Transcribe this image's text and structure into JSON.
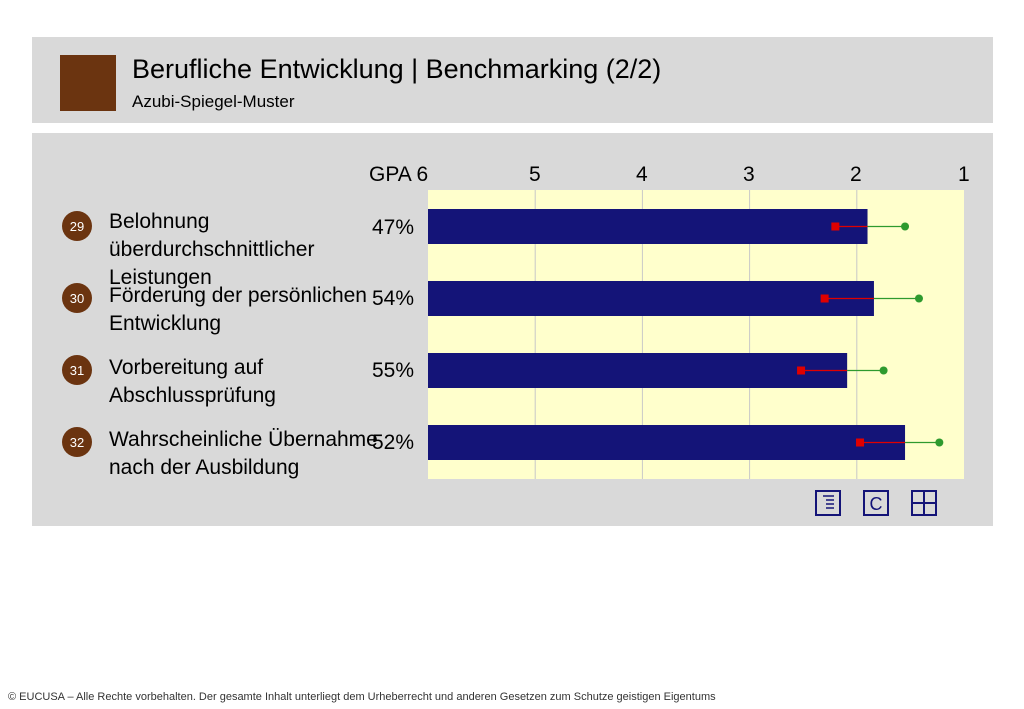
{
  "header": {
    "title": "Berufliche Entwicklung  | Benchmarking (2/2)",
    "subtitle": "Azubi-Spiegel-Muster"
  },
  "chart_data": {
    "type": "bar",
    "axis": {
      "x_tick_labels": [
        "GPA 6",
        "5",
        "4",
        "3",
        "2",
        "1"
      ],
      "xlim": [
        6,
        1
      ],
      "reversed": true
    },
    "categories": [
      {
        "number": "29",
        "label": "Belohnung überdurchschnittlicher Leistungen",
        "percent": "47%"
      },
      {
        "number": "30",
        "label": "Förderung der persönlichen Entwicklung",
        "percent": "54%"
      },
      {
        "number": "31",
        "label": "Vorbereitung auf Abschlussprüfung",
        "percent": "55%"
      },
      {
        "number": "32",
        "label": "Wahrscheinliche Übernahme nach der Ausbildung",
        "percent": "52%"
      }
    ],
    "series": [
      {
        "values": [
          1.9,
          1.84,
          2.09,
          1.55
        ],
        "color": "#141478",
        "kind": "bar"
      },
      {
        "values": [
          2.2,
          2.3,
          2.52,
          1.97
        ],
        "color": "#e00000",
        "kind": "marker-square"
      },
      {
        "values": [
          1.55,
          1.42,
          1.75,
          1.23
        ],
        "color": "#2e9a2e",
        "kind": "marker-circle"
      }
    ],
    "plot_background": "#ffffcc",
    "grid": true
  },
  "footer": {
    "copyright": "© EUCUSA – Alle Rechte vorbehalten. Der gesamte Inhalt unterliegt dem Urheberrecht und anderen Gesetzen zum Schutze geistigen Eigentums"
  }
}
